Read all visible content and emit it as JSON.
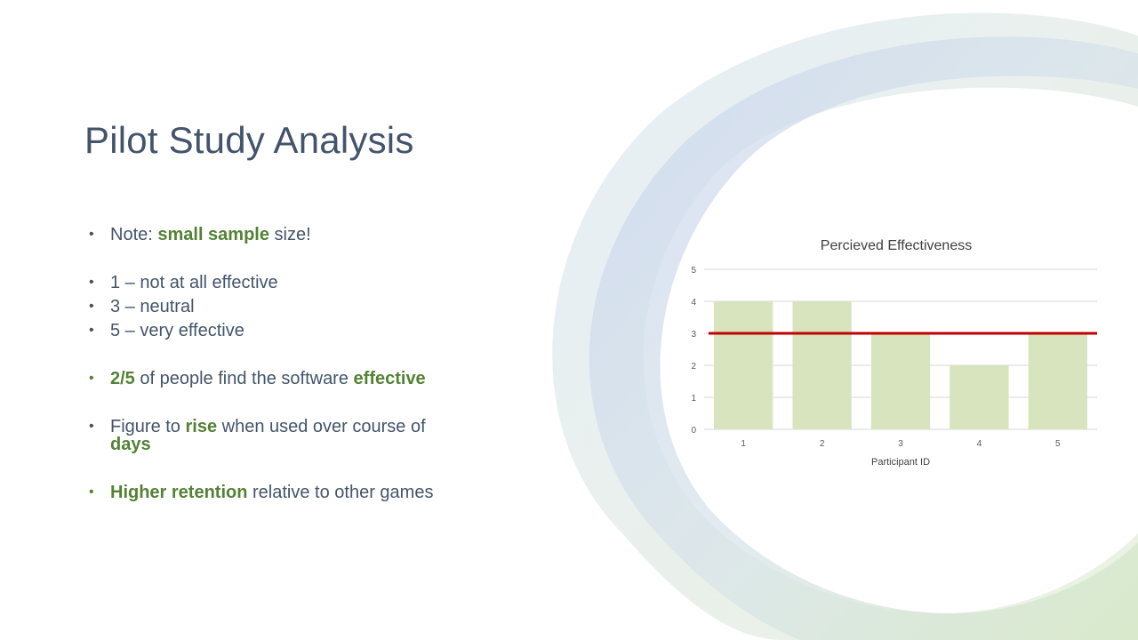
{
  "slide": {
    "title": "Pilot Study Analysis",
    "accent_color": "#548235",
    "text_color": "#44546a"
  },
  "bullets": [
    {
      "segments": [
        {
          "text": "Note: ",
          "highlight": false
        },
        {
          "text": "small sample",
          "highlight": true
        },
        {
          "text": " size!",
          "highlight": false
        }
      ]
    },
    {
      "segments": [
        {
          "text": "1 – not at all effective",
          "highlight": false
        }
      ]
    },
    {
      "segments": [
        {
          "text": "3 – neutral",
          "highlight": false
        }
      ]
    },
    {
      "segments": [
        {
          "text": "5 – very effective",
          "highlight": false
        }
      ]
    },
    {
      "segments": [
        {
          "text": "2/5",
          "highlight": true
        },
        {
          "text": " of people find the software ",
          "highlight": false
        },
        {
          "text": "effective",
          "highlight": true
        }
      ]
    },
    {
      "segments": [
        {
          "text": "Figure to ",
          "highlight": false
        },
        {
          "text": "rise",
          "highlight": true
        },
        {
          "text": " when used over course of ",
          "highlight": false
        },
        {
          "text": "days",
          "highlight": true
        }
      ]
    },
    {
      "segments": [
        {
          "text": "Higher retention",
          "highlight": true
        },
        {
          "text": " relative to other games",
          "highlight": false
        }
      ]
    }
  ],
  "chart_data": {
    "type": "bar",
    "title": "Percieved Effectiveness",
    "xlabel": "Participant ID",
    "ylabel": "",
    "categories": [
      "1",
      "2",
      "3",
      "4",
      "5"
    ],
    "values": [
      4,
      4,
      3,
      2,
      3
    ],
    "ylim": [
      0,
      5
    ],
    "yticks": [
      "0",
      "1",
      "2",
      "3",
      "4",
      "5"
    ],
    "reference_line": 3,
    "bar_color": "#d7e4bd",
    "reference_line_color": "#c00000",
    "grid": true,
    "legend": "none"
  }
}
